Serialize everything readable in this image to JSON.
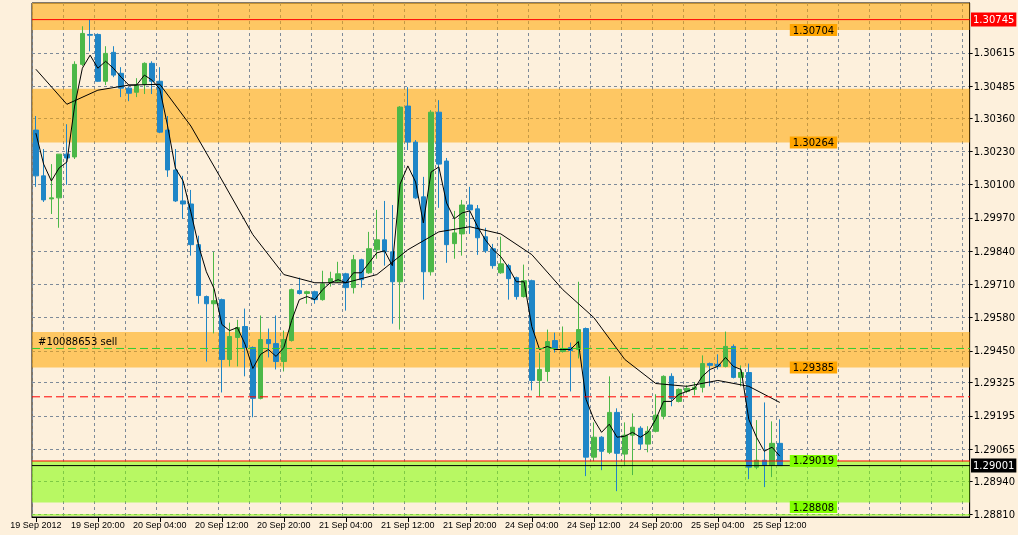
{
  "chart_data": {
    "type": "candlestick",
    "categories": [
      "19 Sep 2012",
      null,
      null,
      null,
      null,
      null,
      null,
      null,
      "19 Sep 20:00",
      null,
      null,
      null,
      null,
      null,
      null,
      null,
      "20 Sep 04:00",
      null,
      null,
      null,
      null,
      null,
      null,
      null,
      "20 Sep 12:00",
      null,
      null,
      null,
      null,
      null,
      null,
      null,
      "20 Sep 20:00",
      null,
      null,
      null,
      null,
      null,
      null,
      null,
      "21 Sep 04:00",
      null,
      null,
      null,
      null,
      null,
      null,
      null,
      "21 Sep 12:00",
      null,
      null,
      null,
      null,
      null,
      null,
      null,
      "21 Sep 20:00",
      null,
      null,
      null,
      null,
      null,
      null,
      null,
      "24 Sep 04:00",
      null,
      null,
      null,
      null,
      null,
      null,
      null,
      "24 Sep 12:00",
      null,
      null,
      null,
      null,
      null,
      null,
      null,
      "24 Sep 20:00",
      null,
      null,
      null,
      null,
      null,
      null,
      null,
      "25 Sep 04:00",
      null,
      null,
      null,
      null,
      null,
      null,
      null,
      "25 Sep 12:00"
    ],
    "ohlc": [
      [
        1.30313,
        1.30368,
        1.30091,
        1.30134
      ],
      [
        1.30134,
        1.30239,
        1.30032,
        1.3004
      ],
      [
        1.30044,
        1.3018,
        1.29985,
        1.30048
      ],
      [
        1.30048,
        1.30219,
        1.29931,
        1.30219
      ],
      [
        1.30219,
        1.30336,
        1.30099,
        1.30204
      ],
      [
        1.30208,
        1.30582,
        1.302,
        1.3057
      ],
      [
        1.3057,
        1.30719,
        1.30563,
        1.30691
      ],
      [
        1.30687,
        1.30745,
        1.30621,
        1.30684
      ],
      [
        1.30687,
        1.30691,
        1.30502,
        1.30504
      ],
      [
        1.30504,
        1.30641,
        1.30489,
        1.30613
      ],
      [
        1.30617,
        1.30641,
        1.3052,
        1.30528
      ],
      [
        1.30535,
        1.30559,
        1.30442,
        1.30477
      ],
      [
        1.30477,
        1.30481,
        1.30426,
        1.30457
      ],
      [
        1.30461,
        1.30516,
        1.30442,
        1.30489
      ],
      [
        1.30492,
        1.30578,
        1.30454,
        1.30574
      ],
      [
        1.30574,
        1.30582,
        1.30454,
        1.30504
      ],
      [
        1.30504,
        1.30559,
        1.30301,
        1.30305
      ],
      [
        1.30313,
        1.30368,
        1.3013,
        1.30157
      ],
      [
        1.30157,
        1.30239,
        1.30032,
        1.30036
      ],
      [
        1.30036,
        1.30134,
        1.29966,
        1.30024
      ],
      [
        1.30024,
        1.30079,
        1.29822,
        1.29865
      ],
      [
        1.29865,
        1.299,
        1.29634,
        1.29666
      ],
      [
        1.29662,
        1.29666,
        1.29408,
        1.29634
      ],
      [
        1.29634,
        1.29837,
        1.29518,
        1.29646
      ],
      [
        1.2965,
        1.29654,
        1.29287,
        1.29416
      ],
      [
        1.29416,
        1.2956,
        1.29389,
        1.29506
      ],
      [
        1.29502,
        1.29571,
        1.29389,
        1.29541
      ],
      [
        1.29545,
        1.29615,
        1.2935,
        1.29463
      ],
      [
        1.29463,
        1.29467,
        1.2919,
        1.29264
      ],
      [
        1.29264,
        1.29588,
        1.2926,
        1.29494
      ],
      [
        1.29494,
        1.29537,
        1.29424,
        1.29478
      ],
      [
        1.29478,
        1.29588,
        1.29377,
        1.29408
      ],
      [
        1.29408,
        1.29529,
        1.29369,
        1.29494
      ],
      [
        1.2949,
        1.29693,
        1.29486,
        1.29689
      ],
      [
        1.29685,
        1.29736,
        1.2967,
        1.29674
      ],
      [
        1.29674,
        1.29685,
        1.29634,
        1.29681
      ],
      [
        1.29681,
        1.29685,
        1.29634,
        1.2965
      ],
      [
        1.2965,
        1.29763,
        1.29646,
        1.29712
      ],
      [
        1.29716,
        1.29759,
        1.29701,
        1.29732
      ],
      [
        1.2972,
        1.29798,
        1.29716,
        1.29751
      ],
      [
        1.29751,
        1.29755,
        1.29607,
        1.29697
      ],
      [
        1.29697,
        1.29825,
        1.29674,
        1.29806
      ],
      [
        1.29806,
        1.2981,
        1.29697,
        1.29728
      ],
      [
        1.29755,
        1.29915,
        1.29751,
        1.29849
      ],
      [
        1.29845,
        1.30001,
        1.2981,
        1.29884
      ],
      [
        1.29884,
        1.30036,
        1.29783,
        1.29837
      ],
      [
        1.29837,
        1.3002,
        1.29556,
        1.2972
      ],
      [
        1.2972,
        1.30407,
        1.29533,
        1.30403
      ],
      [
        1.30407,
        1.30481,
        1.30235,
        1.30266
      ],
      [
        1.30266,
        1.30274,
        1.30044,
        1.30048
      ],
      [
        1.30052,
        1.3013,
        1.2965,
        1.29759
      ],
      [
        1.29759,
        1.30391,
        1.29744,
        1.30383
      ],
      [
        1.30383,
        1.3043,
        1.30009,
        1.3018
      ],
      [
        1.30192,
        1.30204,
        1.29794,
        1.29865
      ],
      [
        1.29869,
        1.29997,
        1.2981,
        1.29911
      ],
      [
        1.29907,
        1.3004,
        1.29822,
        1.3002
      ],
      [
        1.3002,
        1.30091,
        1.29907,
        1.30001
      ],
      [
        1.30005,
        1.3002,
        1.29825,
        1.29892
      ],
      [
        1.29896,
        1.29931,
        1.29833,
        1.29841
      ],
      [
        1.29849,
        1.29868,
        1.29771,
        1.29783
      ],
      [
        1.29755,
        1.29896,
        1.29751,
        1.2979
      ],
      [
        1.29783,
        1.2979,
        1.2965,
        1.29732
      ],
      [
        1.29736,
        1.2974,
        1.2965,
        1.29662
      ],
      [
        1.29662,
        1.29787,
        1.29658,
        1.29724
      ],
      [
        1.29724,
        1.29728,
        1.29295,
        1.29334
      ],
      [
        1.29334,
        1.29443,
        1.29272,
        1.29377
      ],
      [
        1.29369,
        1.29533,
        1.2933,
        1.29486
      ],
      [
        1.2949,
        1.29521,
        1.29443,
        1.29459
      ],
      [
        1.29447,
        1.29545,
        1.29443,
        1.29459
      ],
      [
        1.29463,
        1.29482,
        1.29291,
        1.29451
      ],
      [
        1.29455,
        1.2972,
        1.2942,
        1.29533
      ],
      [
        1.29537,
        1.29541,
        1.2896,
        1.29034
      ],
      [
        1.29034,
        1.2917,
        1.29018,
        1.29112
      ],
      [
        1.29112,
        1.29116,
        1.28983,
        1.29057
      ],
      [
        1.29053,
        1.2935,
        1.29046,
        1.29209
      ],
      [
        1.29209,
        1.29225,
        1.28901,
        1.29049
      ],
      [
        1.29046,
        1.2917,
        1.28999,
        1.2912
      ],
      [
        1.2912,
        1.29205,
        1.28964,
        1.29151
      ],
      [
        1.29147,
        1.29155,
        1.29065,
        1.29085
      ],
      [
        1.29085,
        1.29155,
        1.29053,
        1.29135
      ],
      [
        1.29135,
        1.2928,
        1.29131,
        1.29198
      ],
      [
        1.29194,
        1.29354,
        1.29182,
        1.2935
      ],
      [
        1.2935,
        1.29362,
        1.29233,
        1.29264
      ],
      [
        1.29252,
        1.29303,
        1.29248,
        1.29299
      ],
      [
        1.29291,
        1.29315,
        1.29284,
        1.29303
      ],
      [
        1.29299,
        1.29327,
        1.29276,
        1.29307
      ],
      [
        1.29307,
        1.29432,
        1.29287,
        1.294
      ],
      [
        1.294,
        1.29404,
        1.29311,
        1.29393
      ],
      [
        1.29397,
        1.29436,
        1.29377,
        1.29389
      ],
      [
        1.29389,
        1.29525,
        1.29385,
        1.29467
      ],
      [
        1.29467,
        1.29475,
        1.29342,
        1.29346
      ],
      [
        1.29346,
        1.29393,
        1.29311,
        1.29365
      ],
      [
        1.29365,
        1.294,
        1.28948,
        1.28995
      ],
      [
        1.28995,
        1.29179,
        1.28987,
        1.29022
      ],
      [
        1.29022,
        1.29248,
        1.28917,
        1.29003
      ],
      [
        1.29003,
        1.29174,
        1.28956,
        1.29088
      ],
      [
        1.29088,
        1.29182,
        1.29001,
        1.29001
      ]
    ],
    "colors": [
      "#1f86c7",
      "#1f86c7",
      "#4cb848",
      "#4cb848",
      "#1f86c7",
      "#4cb848",
      "#4cb848",
      "#1f86c7",
      "#1f86c7",
      "#4cb848",
      "#1f86c7",
      "#1f86c7",
      "#1f86c7",
      "#4cb848",
      "#4cb848",
      "#1f86c7",
      "#1f86c7",
      "#1f86c7",
      "#1f86c7",
      "#1f86c7",
      "#1f86c7",
      "#1f86c7",
      "#1f86c7",
      "#4cb848",
      "#1f86c7",
      "#4cb848",
      "#4cb848",
      "#1f86c7",
      "#1f86c7",
      "#4cb848",
      "#1f86c7",
      "#1f86c7",
      "#4cb848",
      "#4cb848",
      "#1f86c7",
      "#4cb848",
      "#1f86c7",
      "#4cb848",
      "#4cb848",
      "#4cb848",
      "#1f86c7",
      "#4cb848",
      "#1f86c7",
      "#4cb848",
      "#4cb848",
      "#1f86c7",
      "#1f86c7",
      "#4cb848",
      "#1f86c7",
      "#1f86c7",
      "#1f86c7",
      "#4cb848",
      "#1f86c7",
      "#1f86c7",
      "#4cb848",
      "#4cb848",
      "#1f86c7",
      "#1f86c7",
      "#1f86c7",
      "#1f86c7",
      "#4cb848",
      "#1f86c7",
      "#1f86c7",
      "#4cb848",
      "#1f86c7",
      "#4cb848",
      "#4cb848",
      "#1f86c7",
      "#4cb848",
      "#1f86c7",
      "#4cb848",
      "#1f86c7",
      "#4cb848",
      "#1f86c7",
      "#4cb848",
      "#1f86c7",
      "#4cb848",
      "#4cb848",
      "#1f86c7",
      "#4cb848",
      "#4cb848",
      "#4cb848",
      "#1f86c7",
      "#4cb848",
      "#4cb848",
      "#4cb848",
      "#4cb848",
      "#1f86c7",
      "#1f86c7",
      "#4cb848",
      "#1f86c7",
      "#4cb848",
      "#1f86c7",
      "#4cb848",
      "#1f86c7",
      "#4cb848",
      "#1f86c7"
    ],
    "series": [
      {
        "type": "line",
        "color": "#000000",
        "values": [
          1.30301,
          1.3018,
          1.30114,
          1.30165,
          1.30188,
          1.30407,
          1.30555,
          1.30606,
          1.30555,
          1.30582,
          1.30555,
          1.3052,
          1.30489,
          1.30489,
          1.30528,
          1.30508,
          1.30473,
          1.30329,
          1.30165,
          1.30114,
          1.29993,
          1.29861,
          1.29759,
          1.29693,
          1.29553,
          1.29529,
          1.29541,
          1.29475,
          1.29381,
          1.29436,
          1.29455,
          1.29428,
          1.29463,
          1.29568,
          1.2965,
          1.29662,
          1.2965,
          1.29689,
          1.29716,
          1.29728,
          1.29716,
          1.29755,
          1.29755,
          1.29794,
          1.29833,
          1.29841,
          1.29783,
          1.30102,
          1.30173,
          1.3011,
          1.2995,
          1.30149,
          1.30169,
          1.30028,
          1.29966,
          1.29989,
          1.29997,
          1.29935,
          1.29884,
          1.29845,
          1.29818,
          1.29775,
          1.2972,
          1.2972,
          1.29545,
          1.29455,
          1.29467,
          1.29455,
          1.29455,
          1.29455,
          1.29486,
          1.2926,
          1.29182,
          1.29131,
          1.29163,
          1.29112,
          1.29116,
          1.29131,
          1.29112,
          1.29131,
          1.29182,
          1.29252,
          1.29252,
          1.2928,
          1.29291,
          1.29303,
          1.2935,
          1.29377,
          1.29389,
          1.29424,
          1.29389,
          1.29377,
          1.29182,
          1.29112,
          1.29057,
          1.29073,
          1.29038
        ]
      },
      {
        "type": "line",
        "color": "#000000",
        "values": [
          1.30551,
          null,
          null,
          null,
          1.30414,
          null,
          null,
          null,
          1.30469,
          null,
          null,
          null,
          1.30489,
          null,
          null,
          null,
          1.30492,
          null,
          null,
          null,
          1.30329,
          null,
          null,
          null,
          1.30118,
          null,
          null,
          null,
          1.29904,
          null,
          null,
          null,
          1.29748,
          null,
          null,
          null,
          1.29716,
          null,
          null,
          null,
          1.29716,
          null,
          null,
          null,
          1.29748,
          null,
          null,
          null,
          1.29845,
          null,
          null,
          null,
          1.29915,
          null,
          null,
          null,
          1.29935,
          null,
          null,
          null,
          1.29907,
          null,
          null,
          null,
          1.29826,
          null,
          null,
          null,
          1.29689,
          null,
          null,
          null,
          1.2958,
          null,
          null,
          null,
          1.29416,
          null,
          null,
          null,
          1.29322,
          null,
          null,
          null,
          1.29311,
          null,
          null,
          null,
          1.29334,
          null,
          null,
          null,
          1.29311,
          null,
          null,
          null,
          1.29248
        ]
      }
    ],
    "ylim": [
      1.288,
      1.3081
    ],
    "yticks": [
      1.30615,
      1.30485,
      {
        "value": 1.3036,
        "label": "1.30360"
      },
      {
        "value": 1.3023,
        "label": "1.30230"
      },
      {
        "value": 1.301,
        "label": "1.30100"
      },
      {
        "value": 1.2997,
        "label": "1.29970"
      },
      {
        "value": 1.2984,
        "label": "1.29840"
      },
      {
        "value": 1.2971,
        "label": "1.29710"
      },
      {
        "value": 1.2958,
        "label": "1.29580"
      },
      {
        "value": 1.2945,
        "label": "1.29450"
      },
      1.29325,
      1.29195,
      1.29065,
      {
        "value": 1.2894,
        "label": "1.28940"
      },
      {
        "value": 1.2881,
        "label": "1.28810"
      }
    ],
    "grid": true,
    "bands": [
      {
        "axis": "y",
        "from": 1.30704,
        "to": 1.3081,
        "label": "1.30704",
        "color": "#ffa500"
      },
      {
        "axis": "y",
        "from": 1.30264,
        "to": 1.30475,
        "label": "1.30264",
        "color": "#ffa500"
      },
      {
        "axis": "y",
        "from": 1.29385,
        "to": 1.29523,
        "label": "1.29385",
        "color": "#ffa500"
      },
      {
        "axis": "y",
        "from": 1.29019,
        "to": 1.28857,
        "label": "1.29019",
        "color": "#80ff00"
      }
    ],
    "ref_lines": [
      {
        "axis": "y",
        "value": 1.30745,
        "label": "1.30745",
        "color": "#ff0000",
        "line_style": "solid"
      },
      {
        "axis": "y",
        "value": 1.29459,
        "label": "#10088653 sell",
        "color": "#33cc33",
        "line_style": "dashed"
      },
      {
        "axis": "y",
        "value": 1.2927,
        "color": "#ff0000",
        "line_style": "dashed"
      },
      {
        "axis": "y",
        "value": 1.29019,
        "color": "#ff0000",
        "line_style": "solid"
      },
      {
        "axis": "y",
        "value": 1.29001,
        "label": "1.29001",
        "color": "#000000",
        "line_style": "solid"
      },
      {
        "axis": "y",
        "value": 1.28808,
        "color": "#80ff00",
        "line_style": "solid"
      }
    ],
    "annotations": [
      "1.28808"
    ]
  }
}
